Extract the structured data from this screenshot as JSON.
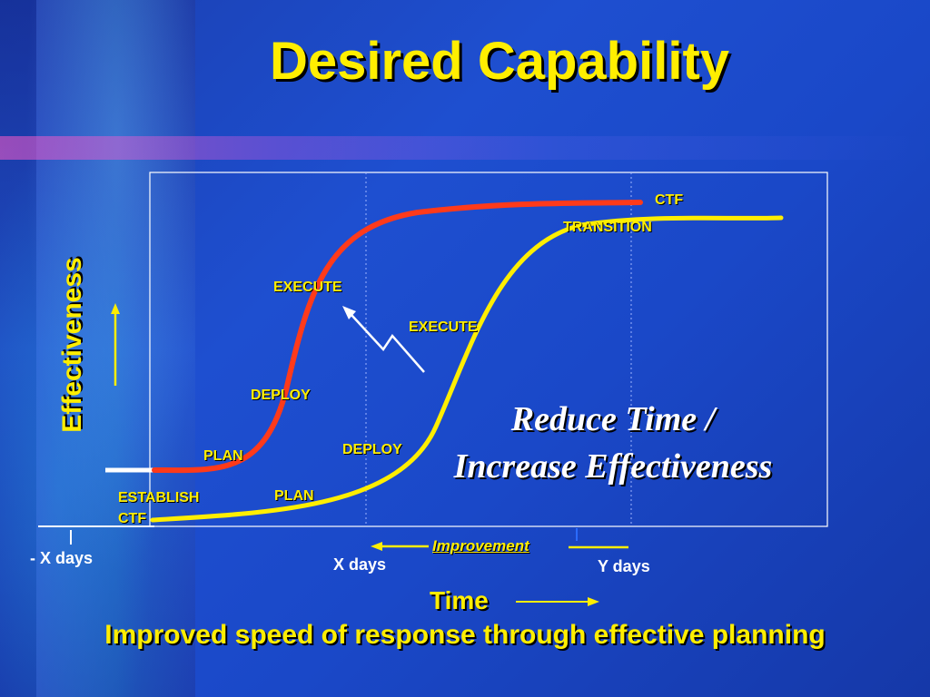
{
  "title": "Desired Capability",
  "y_axis_label": "Effectiveness",
  "x_axis_label": "Time",
  "footer": "Improved speed of response through effective planning",
  "center_text": {
    "line1": "Reduce Time /",
    "line2": "Increase Effectiveness"
  },
  "improvement_label": "Improvement",
  "time_markers": {
    "minus_x": "- X days",
    "x": "X days",
    "y": "Y days"
  },
  "red_curve_phases": {
    "plan": "PLAN",
    "deploy": "DEPLOY",
    "execute": "EXECUTE",
    "ctf": "CTF"
  },
  "yellow_curve_phases": {
    "establish": "ESTABLISH",
    "ctf": "CTF",
    "plan": "PLAN",
    "deploy": "DEPLOY",
    "execute": "EXECUTE",
    "transition": "TRANSITION"
  },
  "colors": {
    "background": "#1e4fd0",
    "accent": "#ffee00",
    "red_curve": "#ff3a1a",
    "yellow_curve": "#ffee00",
    "text_white": "#ffffff"
  }
}
